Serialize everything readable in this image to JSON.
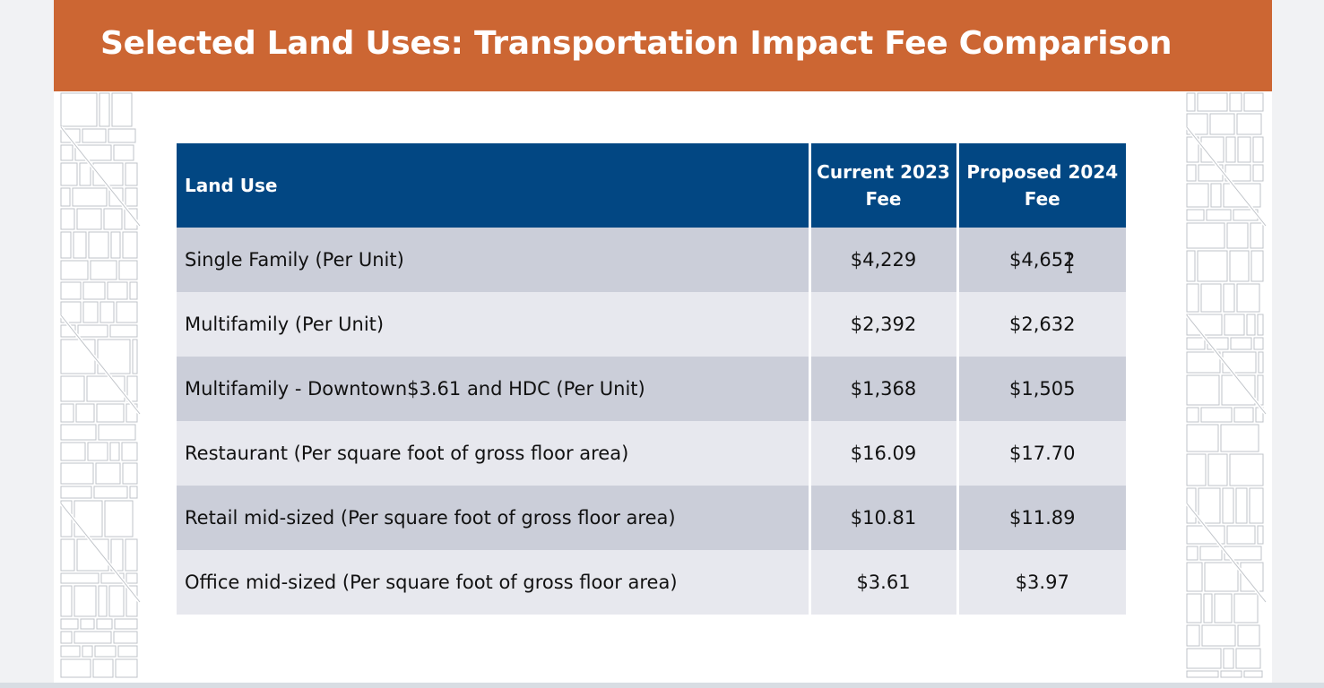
{
  "slide": {
    "title": "Selected Land Uses: Transportation Impact Fee Comparison"
  },
  "table": {
    "headers": {
      "land_use": "Land Use",
      "current_line1": "Current 2023",
      "current_line2": "Fee",
      "proposed_line1": "Proposed 2024",
      "proposed_line2": "Fee"
    },
    "rows": [
      {
        "land_use": "Single Family (Per Unit)",
        "current": "$4,229",
        "proposed": "$4,652"
      },
      {
        "land_use": "Multifamily (Per Unit)",
        "current": "$2,392",
        "proposed": "$2,632"
      },
      {
        "land_use": "Multifamily - Downtown$3.61 and HDC (Per Unit)",
        "current": "$1,368",
        "proposed": "$1,505"
      },
      {
        "land_use": "Restaurant (Per square foot of gross floor area)",
        "current": "$16.09",
        "proposed": "$17.70"
      },
      {
        "land_use": "Retail mid-sized (Per square foot of gross floor area)",
        "current": "$10.81",
        "proposed": "$11.89"
      },
      {
        "land_use": "Office mid-sized (Per square foot of gross floor area)",
        "current": "$3.61",
        "proposed": "$3.97"
      }
    ]
  },
  "colors": {
    "title_bar": "#cc6633",
    "header_fill": "#024783",
    "row_dark": "#cbced9",
    "row_light": "#e7e8ee"
  },
  "icons": {
    "decoration": "street-map-pattern",
    "pointer": "text-cursor-icon"
  }
}
